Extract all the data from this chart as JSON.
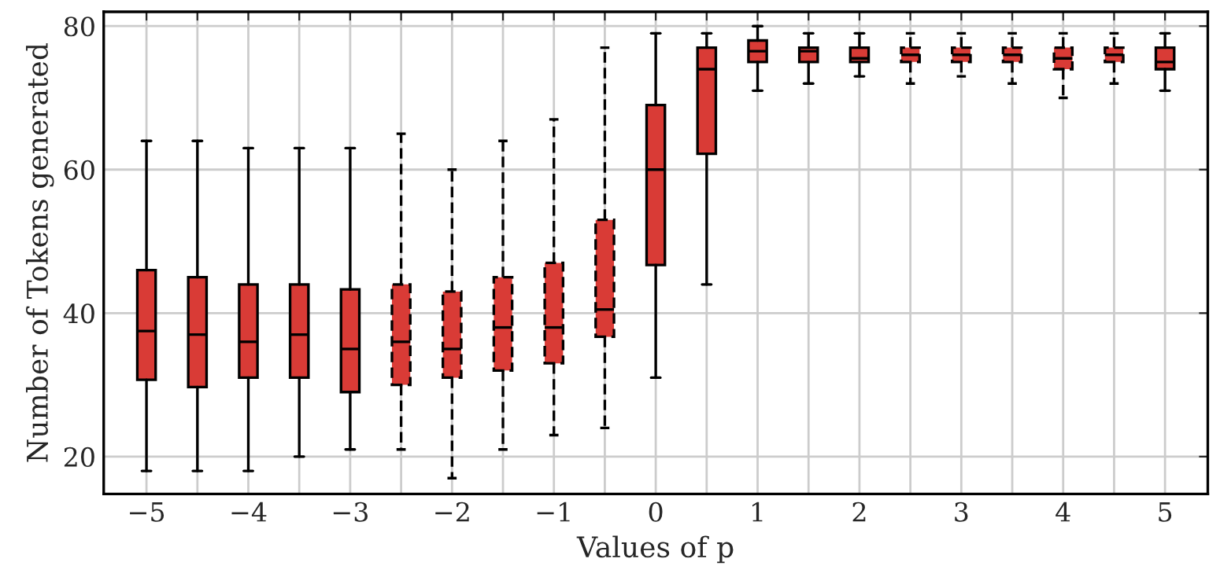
{
  "chart_data": {
    "type": "box",
    "xlabel": "Values of p",
    "ylabel": "Number of Tokens generated",
    "xlim": [
      -5.42,
      5.42
    ],
    "ylim": [
      14.8,
      82
    ],
    "xticks": [
      {
        "value": -5,
        "label": "−5"
      },
      {
        "value": -4.5,
        "label": null
      },
      {
        "value": -4,
        "label": "−4"
      },
      {
        "value": -3.5,
        "label": null
      },
      {
        "value": -3,
        "label": "−3"
      },
      {
        "value": -2.5,
        "label": null
      },
      {
        "value": -2,
        "label": "−2"
      },
      {
        "value": -1.5,
        "label": null
      },
      {
        "value": -1,
        "label": "−1"
      },
      {
        "value": -0.5,
        "label": null
      },
      0,
      {
        "value": 0.5,
        "label": null
      },
      1,
      {
        "value": 1.5,
        "label": null
      },
      2,
      {
        "value": 2.5,
        "label": null
      },
      3,
      {
        "value": 3.5,
        "label": null
      },
      4,
      {
        "value": 4.5,
        "label": null
      },
      5
    ],
    "yticks": [
      20,
      40,
      60,
      80
    ],
    "grid": true,
    "series": [
      {
        "color": "#d93b36",
        "line_style": "solid",
        "x": [
          -5,
          -4.5,
          -4,
          -3.5,
          -3
        ],
        "boxes": [
          {
            "low": 18,
            "q1": 30.7,
            "median": 37.5,
            "q3": 46,
            "high": 64
          },
          {
            "low": 18,
            "q1": 29.7,
            "median": 37,
            "q3": 45,
            "high": 64
          },
          {
            "low": 18,
            "q1": 31,
            "median": 36,
            "q3": 44,
            "high": 63
          },
          {
            "low": 20,
            "q1": 31,
            "median": 37,
            "q3": 44,
            "high": 63
          },
          {
            "low": 21,
            "q1": 29,
            "median": 35,
            "q3": 43.3,
            "high": 63
          }
        ]
      },
      {
        "color": "#d93b36",
        "line_style": "dashed",
        "x": [
          -2.5,
          -2,
          -1.5,
          -1,
          -0.5
        ],
        "boxes": [
          {
            "low": 21,
            "q1": 30,
            "median": 36,
            "q3": 44,
            "high": 65
          },
          {
            "low": 17,
            "q1": 31,
            "median": 35,
            "q3": 43,
            "high": 60
          },
          {
            "low": 21,
            "q1": 32,
            "median": 38,
            "q3": 45,
            "high": 64
          },
          {
            "low": 23,
            "q1": 33,
            "median": 38,
            "q3": 47,
            "high": 67
          },
          {
            "low": 24,
            "q1": 36.7,
            "median": 40.5,
            "q3": 53,
            "high": 77
          }
        ]
      },
      {
        "color": "#d93b36",
        "line_style": "solid",
        "x": [
          0,
          0.5,
          1,
          1.5,
          2
        ],
        "boxes": [
          {
            "low": 31,
            "q1": 46.7,
            "median": 60,
            "q3": 69,
            "high": 79
          },
          {
            "low": 44,
            "q1": 62.2,
            "median": 74,
            "q3": 77,
            "high": 79
          },
          {
            "low": 71,
            "q1": 75,
            "median": 76.5,
            "q3": 78,
            "high": 80
          },
          {
            "low": 72,
            "q1": 75,
            "median": 76.5,
            "q3": 77,
            "high": 79
          },
          {
            "low": 73,
            "q1": 75,
            "median": 75.5,
            "q3": 77,
            "high": 79
          }
        ]
      },
      {
        "color": "#d93b36",
        "line_style": "dashed",
        "x": [
          2.5,
          3,
          3.5,
          4,
          4.5
        ],
        "boxes": [
          {
            "low": 72,
            "q1": 75,
            "median": 76,
            "q3": 77,
            "high": 79
          },
          {
            "low": 73,
            "q1": 75,
            "median": 76,
            "q3": 77,
            "high": 79
          },
          {
            "low": 72,
            "q1": 75,
            "median": 76,
            "q3": 77,
            "high": 79
          },
          {
            "low": 70,
            "q1": 74,
            "median": 75.5,
            "q3": 77,
            "high": 79
          },
          {
            "low": 72,
            "q1": 75,
            "median": 76,
            "q3": 77,
            "high": 79
          }
        ]
      },
      {
        "color": "#d93b36",
        "line_style": "solid",
        "x": [
          5
        ],
        "boxes": [
          {
            "low": 71,
            "q1": 74,
            "median": 75,
            "q3": 77,
            "high": 79
          }
        ]
      }
    ]
  }
}
